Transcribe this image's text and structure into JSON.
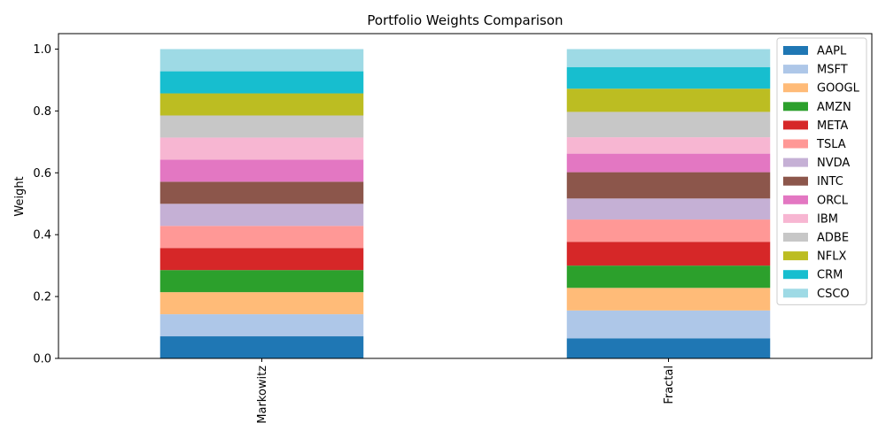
{
  "chart_data": {
    "type": "bar",
    "stacked": true,
    "title": "Portfolio Weights Comparison",
    "xlabel": "",
    "ylabel": "Weight",
    "categories": [
      "Markowitz",
      "Fractal"
    ],
    "ylim": [
      0,
      1.05
    ],
    "yticks": [
      "0.0",
      "0.2",
      "0.4",
      "0.6",
      "0.8",
      "1.0"
    ],
    "grid": false,
    "legend_position": "top-right",
    "series": [
      {
        "name": "AAPL",
        "color": "#1f77b4",
        "values": [
          0.0714,
          0.065
        ]
      },
      {
        "name": "MSFT",
        "color": "#aec7e8",
        "values": [
          0.0714,
          0.09
        ]
      },
      {
        "name": "GOOGL",
        "color": "#ffbb78",
        "values": [
          0.0714,
          0.073
        ]
      },
      {
        "name": "AMZN",
        "color": "#2ca02c",
        "values": [
          0.0714,
          0.072
        ]
      },
      {
        "name": "META",
        "color": "#d62728",
        "values": [
          0.0714,
          0.077
        ]
      },
      {
        "name": "TSLA",
        "color": "#ff9896",
        "values": [
          0.0714,
          0.072
        ]
      },
      {
        "name": "NVDA",
        "color": "#c5b0d5",
        "values": [
          0.0714,
          0.068
        ]
      },
      {
        "name": "INTC",
        "color": "#8c564b",
        "values": [
          0.0714,
          0.085
        ]
      },
      {
        "name": "ORCL",
        "color": "#e377c2",
        "values": [
          0.0714,
          0.06
        ]
      },
      {
        "name": "IBM",
        "color": "#f7b6d2",
        "values": [
          0.0714,
          0.053
        ]
      },
      {
        "name": "ADBE",
        "color": "#c7c7c7",
        "values": [
          0.0714,
          0.082
        ]
      },
      {
        "name": "NFLX",
        "color": "#bcbd22",
        "values": [
          0.0714,
          0.075
        ]
      },
      {
        "name": "CRM",
        "color": "#17becf",
        "values": [
          0.0714,
          0.07
        ]
      },
      {
        "name": "CSCO",
        "color": "#9edae5",
        "values": [
          0.0718,
          0.058
        ]
      }
    ]
  }
}
